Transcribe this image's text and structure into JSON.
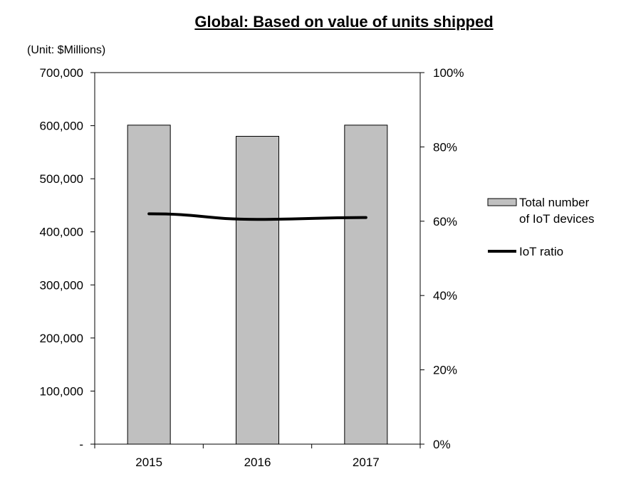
{
  "chart_data": {
    "type": "bar",
    "title": "Global: Based on value of units shipped",
    "unit_label": "(Unit: $Millions)",
    "categories": [
      "2015",
      "2016",
      "2017"
    ],
    "series": [
      {
        "name": "Total number of IoT devices",
        "type": "bar",
        "axis": "left",
        "values": [
          601000,
          580000,
          601000
        ],
        "color": "#c0c0c0"
      },
      {
        "name": "IoT ratio",
        "type": "line",
        "axis": "right",
        "values": [
          0.62,
          0.605,
          0.61
        ],
        "color": "#000000"
      }
    ],
    "y_left": {
      "ylim": [
        0,
        700000
      ],
      "ticks": [
        0,
        100000,
        200000,
        300000,
        400000,
        500000,
        600000,
        700000
      ],
      "tick_labels": [
        "-",
        "100,000",
        "200,000",
        "300,000",
        "400,000",
        "500,000",
        "600,000",
        "700,000"
      ]
    },
    "y_right": {
      "ylim": [
        0,
        1
      ],
      "ticks": [
        0,
        0.2,
        0.4,
        0.6,
        0.8,
        1.0
      ],
      "tick_labels": [
        "0%",
        "20%",
        "40%",
        "60%",
        "80%",
        "100%"
      ]
    },
    "legend": {
      "position": "right",
      "lines": [
        [
          "Total number",
          "of IoT devices"
        ],
        [
          "IoT ratio"
        ]
      ]
    },
    "grid": false
  }
}
